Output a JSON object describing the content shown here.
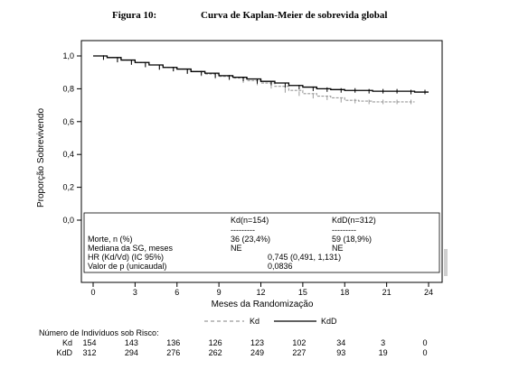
{
  "figure": {
    "number": "Figura 10:",
    "title": "Curva de Kaplan-Meier de sobrevida global"
  },
  "chart_data": {
    "type": "line",
    "xlabel": "Meses da Randomização",
    "ylabel": "Proporção Sobrevivendo",
    "xlim": [
      0,
      24
    ],
    "ylim": [
      0,
      1
    ],
    "x_ticks": [
      "0",
      "3",
      "6",
      "9",
      "12",
      "15",
      "18",
      "21",
      "24"
    ],
    "y_ticks": [
      "0,0",
      "0,2",
      "0,4",
      "0,6",
      "0,8",
      "1,0"
    ],
    "series": [
      {
        "name": "Kd",
        "color": "#9a9a9a",
        "style": "dashed",
        "points": [
          [
            0,
            1.0
          ],
          [
            1,
            0.99
          ],
          [
            2,
            0.975
          ],
          [
            3,
            0.96
          ],
          [
            4,
            0.945
          ],
          [
            5,
            0.93
          ],
          [
            6,
            0.92
          ],
          [
            7,
            0.905
          ],
          [
            8,
            0.89
          ],
          [
            9,
            0.875
          ],
          [
            10,
            0.865
          ],
          [
            11,
            0.85
          ],
          [
            12,
            0.835
          ],
          [
            13,
            0.815
          ],
          [
            14,
            0.79
          ],
          [
            15,
            0.77
          ],
          [
            16,
            0.755
          ],
          [
            17,
            0.745
          ],
          [
            18,
            0.73
          ],
          [
            19,
            0.725
          ],
          [
            20,
            0.72
          ],
          [
            21,
            0.72
          ],
          [
            22,
            0.72
          ],
          [
            23,
            0.72
          ]
        ]
      },
      {
        "name": "KdD",
        "color": "#000000",
        "style": "solid",
        "points": [
          [
            0,
            1.0
          ],
          [
            1,
            0.99
          ],
          [
            2,
            0.975
          ],
          [
            3,
            0.96
          ],
          [
            4,
            0.945
          ],
          [
            5,
            0.93
          ],
          [
            6,
            0.92
          ],
          [
            7,
            0.905
          ],
          [
            8,
            0.895
          ],
          [
            9,
            0.88
          ],
          [
            10,
            0.87
          ],
          [
            11,
            0.86
          ],
          [
            12,
            0.845
          ],
          [
            13,
            0.835
          ],
          [
            14,
            0.82
          ],
          [
            15,
            0.81
          ],
          [
            16,
            0.8
          ],
          [
            17,
            0.795
          ],
          [
            18,
            0.79
          ],
          [
            19,
            0.79
          ],
          [
            20,
            0.785
          ],
          [
            21,
            0.785
          ],
          [
            22,
            0.785
          ],
          [
            23,
            0.78
          ],
          [
            24,
            0.78
          ]
        ]
      }
    ],
    "stats_table": {
      "col_headers": [
        "Kd(n=154)",
        "KdD(n=312)"
      ],
      "separator": "---------",
      "rows": [
        {
          "label": "Morte, n (%)",
          "kd": "36 (23,4%)",
          "kdd": "59 (18,9%)"
        },
        {
          "label": "Mediana da SG, meses",
          "kd": "NE",
          "kdd": "NE"
        },
        {
          "label": "HR (Kd/Vd) (IC 95%)",
          "shared": "0,745 (0,491, 1,131)"
        },
        {
          "label": "Valor de p (unicaudal)",
          "shared": "0,0836"
        }
      ]
    },
    "legend": {
      "position": "bottom",
      "labels": [
        "Kd",
        "KdD"
      ]
    },
    "risk_table": {
      "title": "Número de Indivíduos sob Risco:",
      "rows": [
        {
          "label": "Kd",
          "values": [
            "154",
            "143",
            "136",
            "126",
            "123",
            "102",
            "34",
            "3",
            "0"
          ]
        },
        {
          "label": "KdD",
          "values": [
            "312",
            "294",
            "276",
            "262",
            "249",
            "227",
            "93",
            "19",
            "0"
          ]
        }
      ]
    }
  }
}
